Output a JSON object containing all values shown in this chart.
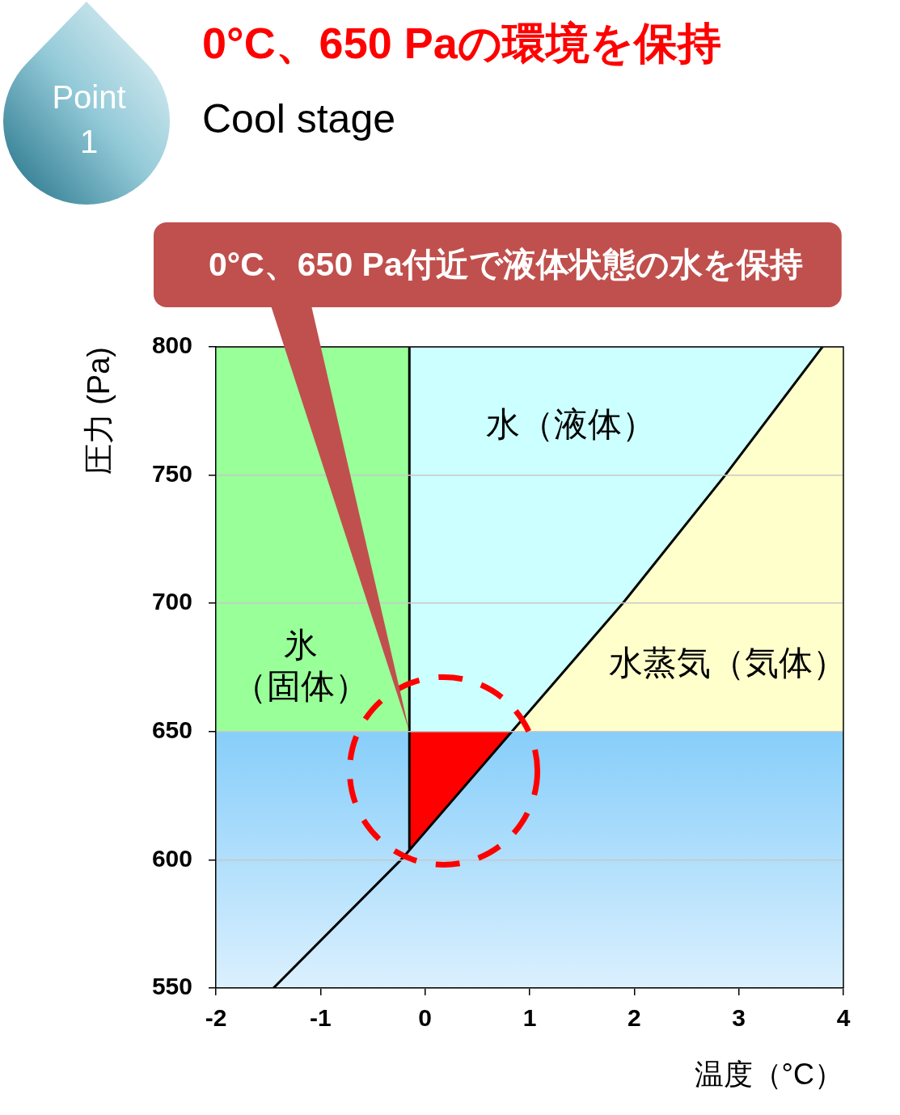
{
  "chart_data": {
    "type": "line",
    "title": "0°C、650 Paの環境を保持",
    "subtitle": "Cool stage",
    "xlabel": "温度（°C）",
    "ylabel": "圧力 (Pa)",
    "annotations": [
      "Point 1",
      {
        "text": "0°C、650 Pa付近で液体状態の水を保持",
        "x": -0.15,
        "y": 650
      }
    ],
    "series": [
      {
        "name": "氷（固体）",
        "type": "area",
        "color": "#99ff99",
        "x": [
          -2,
          -0.15
        ],
        "values": [
          800,
          800
        ]
      },
      {
        "name": "水（液体）",
        "type": "area",
        "color": "#ccffff",
        "x": [
          -0.15,
          3.8
        ],
        "values": [
          800,
          800
        ]
      },
      {
        "name": "水蒸気（気体）",
        "type": "area",
        "color": "#ffffcc",
        "x": [
          0.83,
          1.89,
          2.87,
          3.8,
          4
        ],
        "values": [
          650,
          700,
          750,
          800,
          800
        ]
      },
      {
        "type": "area",
        "color": "#87cefa",
        "x": [
          -2,
          4
        ],
        "values": [
          650,
          650
        ]
      },
      {
        "type": "area",
        "color": "#ff0000",
        "x": [
          -0.15,
          -0.15,
          0.83
        ],
        "values": [
          604,
          650,
          650
        ]
      },
      {
        "color": "#000000",
        "x": [
          -1.45,
          -0.23,
          0.83,
          1.89,
          2.87,
          3.8
        ],
        "values": [
          550,
          600,
          650,
          700,
          750,
          800
        ]
      },
      {
        "color": "#000000",
        "x": [
          -0.15,
          -0.15
        ],
        "values": [
          604,
          800
        ]
      }
    ],
    "xlim": [
      -2,
      4
    ],
    "ylim": [
      550,
      800
    ],
    "xticks": [
      -2,
      -1,
      0,
      1,
      2,
      3,
      4
    ],
    "yticks": [
      550,
      600,
      650,
      700,
      750,
      800
    ],
    "grid": "y",
    "line_style": "solid"
  }
}
